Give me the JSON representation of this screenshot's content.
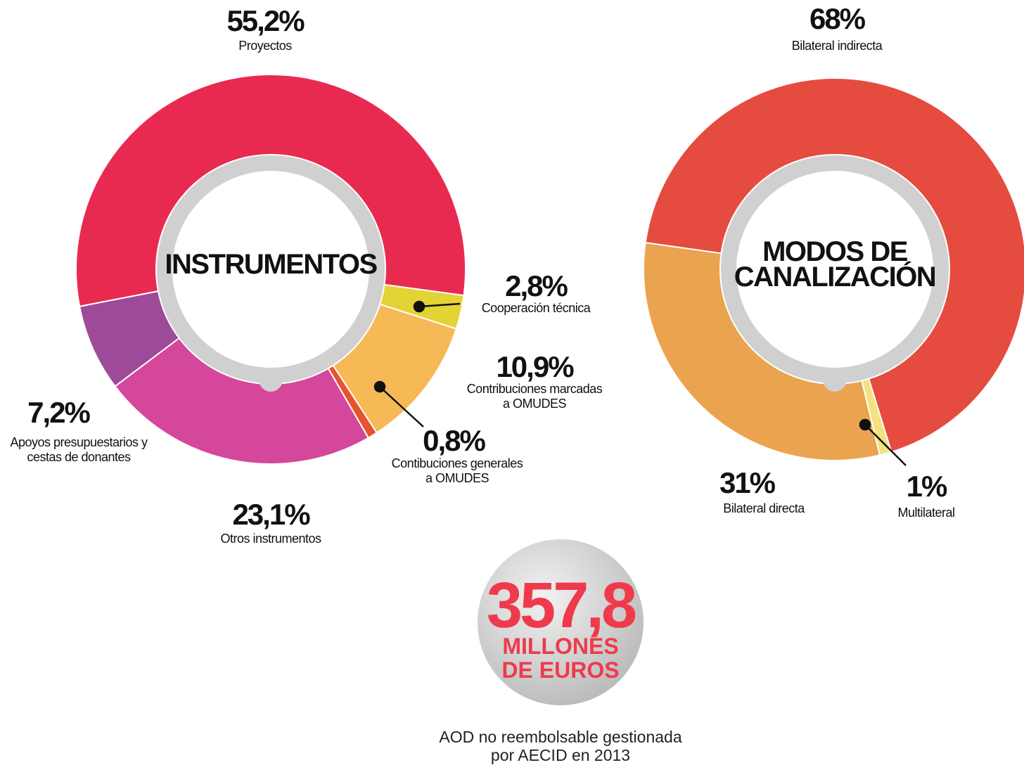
{
  "chart_data": [
    {
      "type": "donut",
      "title": "INSTRUMENTOS",
      "categories": [
        "Proyectos",
        "Cooperación técnica",
        "Contribuciones marcadas\na OMUDES",
        "Contibuciones generales\na OMUDES",
        "Otros instrumentos",
        "Apoyos presupuestarios y\ncestas de donantes"
      ],
      "values": [
        55.2,
        2.8,
        10.9,
        0.8,
        23.1,
        7.2
      ],
      "value_labels": [
        "55,2%",
        "2,8%",
        "10,9%",
        "0,8%",
        "23,1%",
        "7,2%"
      ],
      "colors": [
        "#e92a50",
        "#e4d334",
        "#f6b955",
        "#e8532f",
        "#d5479b",
        "#9d4b98"
      ]
    },
    {
      "type": "donut",
      "title": "MODOS DE\nCANALIZACIÓN",
      "categories": [
        "Bilateral indirecta",
        "Multilateral",
        "Bilateral directa"
      ],
      "values": [
        68,
        1,
        31
      ],
      "value_labels": [
        "68%",
        "1%",
        "31%"
      ],
      "colors": [
        "#e64b40",
        "#f3e27e",
        "#eaa34e"
      ]
    }
  ],
  "summary": {
    "amount": "357,8",
    "unit": "MILLONES\nDE EUROS",
    "caption": "AOD no reembolsable gestionada\npor AECID en 2013"
  }
}
